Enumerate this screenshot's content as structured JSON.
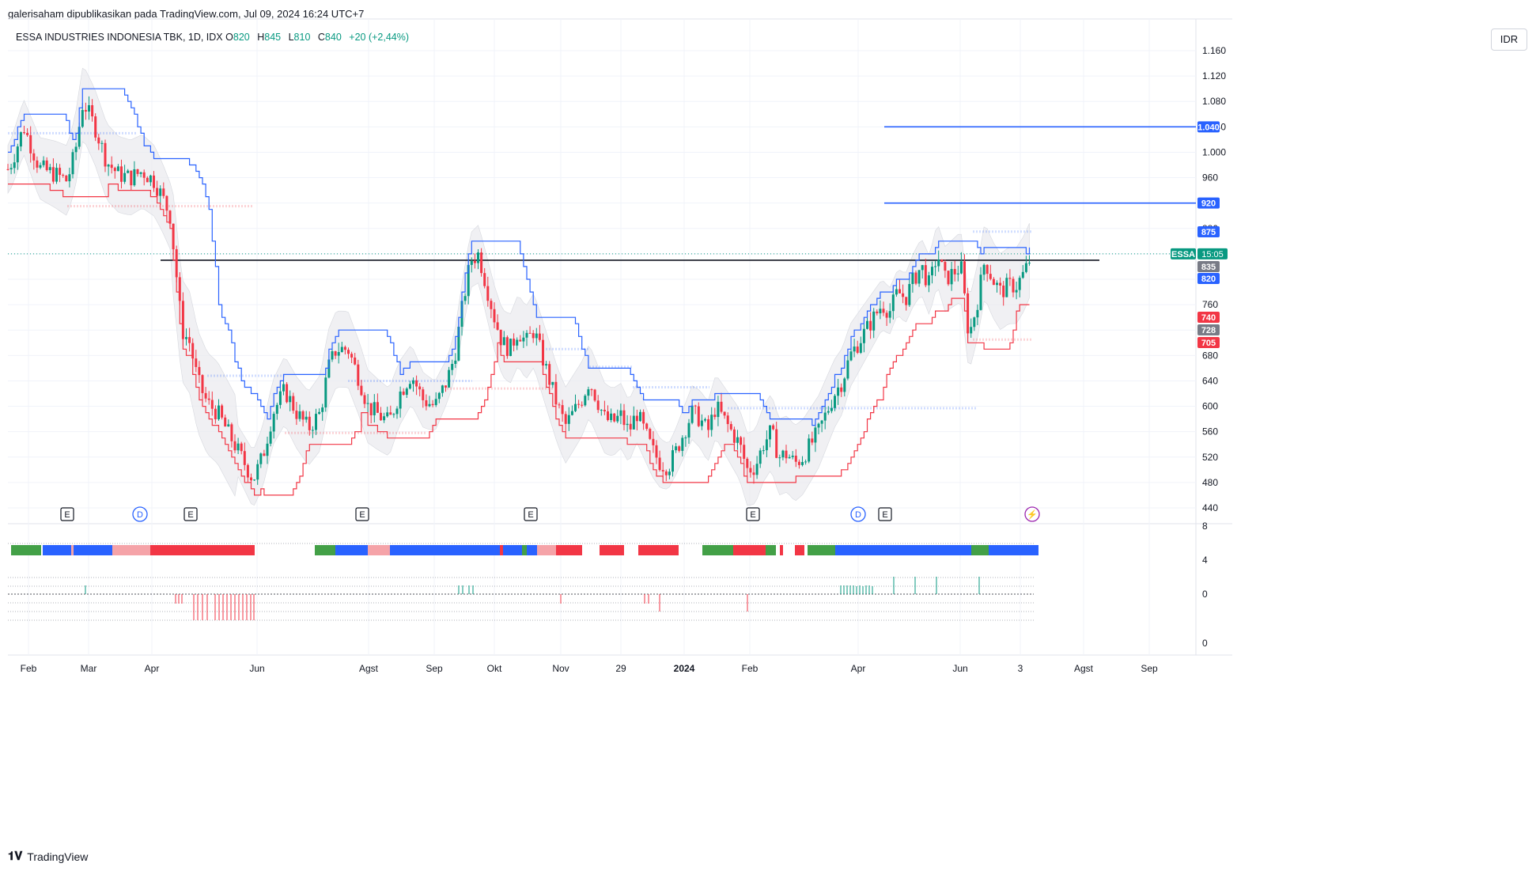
{
  "header": {
    "publisher_line": "galerisaham dipublikasikan pada TradingView.com, Jul 09, 2024 16:24 UTC+7"
  },
  "legend": {
    "symbol_line": "ESSA INDUSTRIES INDONESIA TBK, 1D, IDX",
    "open_label": "O",
    "open_value": "820",
    "high_label": "H",
    "high_value": "845",
    "low_label": "L",
    "low_value": "810",
    "close_label": "C",
    "close_value": "840",
    "change": "+20 (+2,44%)"
  },
  "currency_button": "IDR",
  "footer": {
    "brand": "TradingView"
  },
  "colors": {
    "up": "#089981",
    "down": "#f23645",
    "blue_line": "#2962ff",
    "red_line": "#f23645",
    "band_fill": "#e9eaee",
    "grid": "#f0f3fa",
    "green_bar": "#43a047",
    "blue_bar": "#2962ff",
    "red_bar": "#f23645",
    "pink_bar": "#f5a3a8"
  },
  "chart_data": {
    "type": "candlestick",
    "ylim": [
      420,
      1180
    ],
    "y_ticks": [
      "1.160",
      "1.120",
      "1.080",
      "1.040",
      "1.000",
      "960",
      "920",
      "880",
      "840",
      "800",
      "760",
      "720",
      "680",
      "640",
      "600",
      "560",
      "520",
      "480",
      "440"
    ],
    "x_labels": [
      "Feb",
      "Mar",
      "Apr",
      "Jun",
      "Agst",
      "Sep",
      "Okt",
      "Nov",
      "29",
      "2024",
      "Feb",
      "Apr",
      "Jun",
      "3",
      "Agst",
      "Sep"
    ],
    "price_badges": [
      {
        "label": "1.040",
        "value": 1040,
        "color": "#2962ff"
      },
      {
        "label": "920",
        "value": 920,
        "color": "#2962ff"
      },
      {
        "label": "875",
        "value": 875,
        "color": "#2962ff"
      },
      {
        "label": "835",
        "value": 835,
        "color": "#787b86"
      },
      {
        "label": "820",
        "value": 820,
        "color": "#2962ff"
      },
      {
        "label": "740",
        "value": 740,
        "color": "#f23645"
      },
      {
        "label": "728",
        "value": 728,
        "color": "#787b86"
      },
      {
        "label": "705",
        "value": 705,
        "color": "#f23645"
      }
    ],
    "last_price": {
      "symbol": "ESSA",
      "countdown": "15:05",
      "value": 840
    },
    "horizontal_lines": [
      {
        "value": 1040,
        "color": "#2962ff"
      },
      {
        "value": 920,
        "color": "#2962ff"
      },
      {
        "value": 830,
        "color": "#131722"
      }
    ],
    "event_markers": [
      "E",
      "D",
      "E",
      "E",
      "E",
      "E",
      "D",
      "E",
      "⚡"
    ],
    "lower_pane_ticks": [
      "8",
      "4",
      "0",
      "0"
    ],
    "close_path": [
      [
        0,
        950
      ],
      [
        15,
        985
      ],
      [
        30,
        1040
      ],
      [
        50,
        975
      ],
      [
        70,
        965
      ],
      [
        85,
        955
      ],
      [
        95,
        1000
      ],
      [
        105,
        1080
      ],
      [
        120,
        1040
      ],
      [
        135,
        985
      ],
      [
        150,
        965
      ],
      [
        165,
        960
      ],
      [
        180,
        970
      ],
      [
        195,
        955
      ],
      [
        205,
        930
      ],
      [
        215,
        900
      ],
      [
        222,
        820
      ],
      [
        230,
        720
      ],
      [
        240,
        700
      ],
      [
        250,
        640
      ],
      [
        262,
        605
      ],
      [
        275,
        590
      ],
      [
        290,
        555
      ],
      [
        305,
        520
      ],
      [
        320,
        485
      ],
      [
        332,
        520
      ],
      [
        345,
        590
      ],
      [
        360,
        625
      ],
      [
        375,
        590
      ],
      [
        390,
        565
      ],
      [
        405,
        590
      ],
      [
        415,
        660
      ],
      [
        425,
        690
      ],
      [
        440,
        690
      ],
      [
        455,
        640
      ],
      [
        465,
        600
      ],
      [
        480,
        585
      ],
      [
        492,
        575
      ],
      [
        505,
        620
      ],
      [
        520,
        650
      ],
      [
        535,
        610
      ],
      [
        550,
        600
      ],
      [
        565,
        640
      ],
      [
        575,
        680
      ],
      [
        585,
        760
      ],
      [
        595,
        830
      ],
      [
        605,
        840
      ],
      [
        615,
        790
      ],
      [
        625,
        740
      ],
      [
        635,
        700
      ],
      [
        645,
        690
      ],
      [
        655,
        720
      ],
      [
        665,
        700
      ],
      [
        675,
        720
      ],
      [
        685,
        680
      ],
      [
        695,
        640
      ],
      [
        705,
        600
      ],
      [
        715,
        570
      ],
      [
        725,
        590
      ],
      [
        735,
        610
      ],
      [
        745,
        640
      ],
      [
        755,
        610
      ],
      [
        765,
        580
      ],
      [
        775,
        575
      ],
      [
        785,
        585
      ],
      [
        795,
        560
      ],
      [
        805,
        590
      ],
      [
        815,
        560
      ],
      [
        825,
        530
      ],
      [
        835,
        510
      ],
      [
        845,
        505
      ],
      [
        855,
        530
      ],
      [
        865,
        560
      ],
      [
        875,
        590
      ],
      [
        885,
        580
      ],
      [
        895,
        560
      ],
      [
        905,
        600
      ],
      [
        915,
        580
      ],
      [
        925,
        560
      ],
      [
        935,
        540
      ],
      [
        945,
        500
      ],
      [
        955,
        505
      ],
      [
        965,
        540
      ],
      [
        975,
        560
      ],
      [
        985,
        520
      ],
      [
        995,
        525
      ],
      [
        1005,
        510
      ],
      [
        1015,
        520
      ],
      [
        1025,
        540
      ],
      [
        1035,
        560
      ],
      [
        1045,
        590
      ],
      [
        1055,
        620
      ],
      [
        1065,
        640
      ],
      [
        1075,
        680
      ],
      [
        1085,
        700
      ],
      [
        1095,
        720
      ],
      [
        1105,
        740
      ],
      [
        1115,
        760
      ],
      [
        1125,
        750
      ],
      [
        1135,
        780
      ],
      [
        1145,
        770
      ],
      [
        1155,
        800
      ],
      [
        1165,
        820
      ],
      [
        1175,
        790
      ],
      [
        1185,
        840
      ],
      [
        1195,
        800
      ],
      [
        1205,
        810
      ],
      [
        1215,
        820
      ],
      [
        1225,
        710
      ],
      [
        1235,
        760
      ],
      [
        1245,
        830
      ],
      [
        1255,
        800
      ],
      [
        1265,
        780
      ],
      [
        1275,
        790
      ],
      [
        1285,
        790
      ],
      [
        1295,
        810
      ],
      [
        1305,
        840
      ]
    ],
    "state_bar_segments": [
      {
        "from": 14,
        "to": 52,
        "color": "#43a047"
      },
      {
        "from": 54,
        "to": 90,
        "color": "#2962ff"
      },
      {
        "from": 90,
        "to": 93,
        "color": "#f5a3a8"
      },
      {
        "from": 93,
        "to": 142,
        "color": "#2962ff"
      },
      {
        "from": 142,
        "to": 190,
        "color": "#f5a3a8"
      },
      {
        "from": 190,
        "to": 322,
        "color": "#f23645"
      },
      {
        "from": 398,
        "to": 424,
        "color": "#43a047"
      },
      {
        "from": 424,
        "to": 465,
        "color": "#2962ff"
      },
      {
        "from": 465,
        "to": 493,
        "color": "#f5a3a8"
      },
      {
        "from": 493,
        "to": 632,
        "color": "#2962ff"
      },
      {
        "from": 632,
        "to": 636,
        "color": "#f23645"
      },
      {
        "from": 636,
        "to": 660,
        "color": "#2962ff"
      },
      {
        "from": 660,
        "to": 666,
        "color": "#43a047"
      },
      {
        "from": 666,
        "to": 679,
        "color": "#2962ff"
      },
      {
        "from": 679,
        "to": 703,
        "color": "#f5a3a8"
      },
      {
        "from": 703,
        "to": 736,
        "color": "#f23645"
      },
      {
        "from": 758,
        "to": 789,
        "color": "#f23645"
      },
      {
        "from": 807,
        "to": 858,
        "color": "#f23645"
      },
      {
        "from": 888,
        "to": 927,
        "color": "#43a047"
      },
      {
        "from": 927,
        "to": 968,
        "color": "#f23645"
      },
      {
        "from": 968,
        "to": 981,
        "color": "#43a047"
      },
      {
        "from": 986,
        "to": 990,
        "color": "#f23645"
      },
      {
        "from": 1005,
        "to": 1017,
        "color": "#f23645"
      },
      {
        "from": 1021,
        "to": 1056,
        "color": "#43a047"
      },
      {
        "from": 1056,
        "to": 1228,
        "color": "#2962ff"
      },
      {
        "from": 1228,
        "to": 1250,
        "color": "#43a047"
      },
      {
        "from": 1250,
        "to": 1272,
        "color": "#2962ff"
      },
      {
        "from": 1272,
        "to": 1313,
        "color": "#2962ff"
      }
    ]
  }
}
